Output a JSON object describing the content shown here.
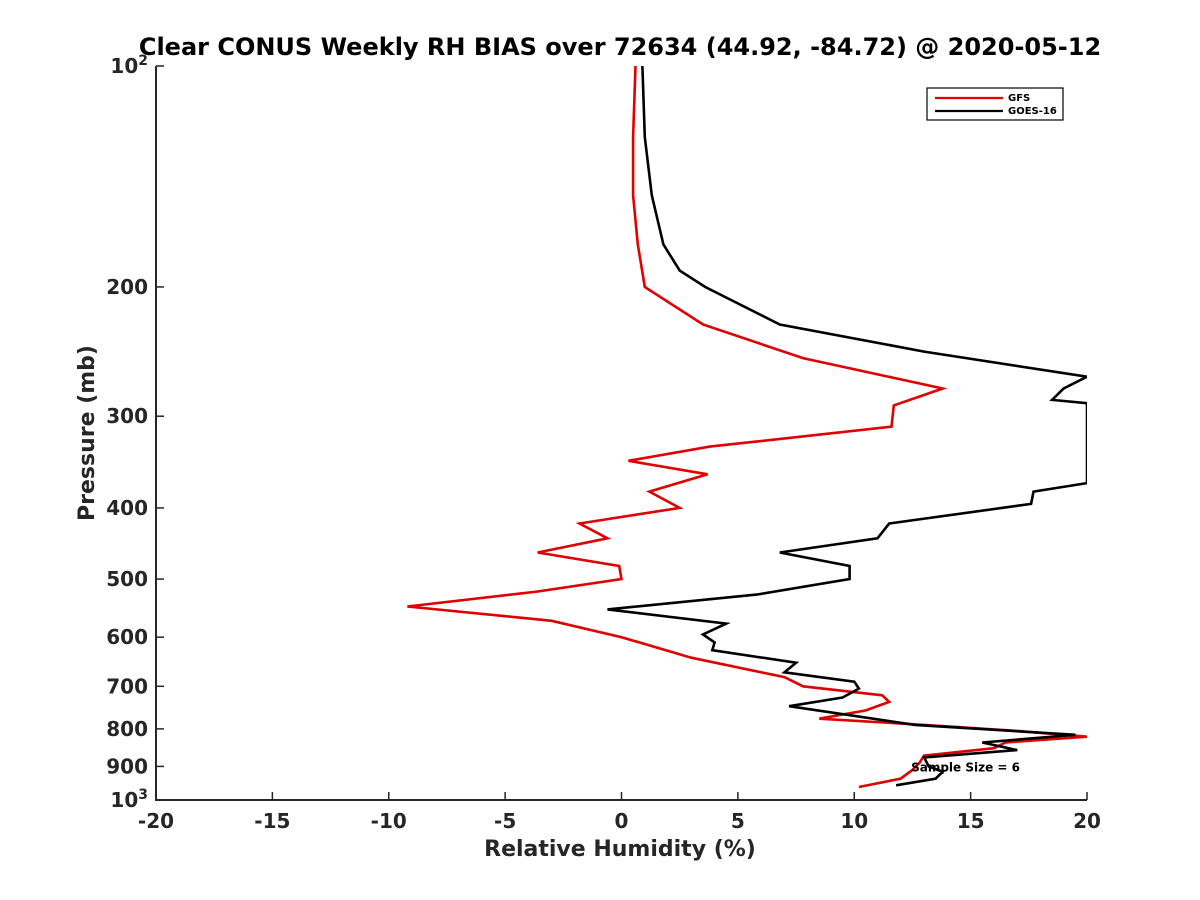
{
  "chart_data": {
    "type": "line",
    "title": "Clear CONUS Weekly RH BIAS over 72634 (44.92, -84.72) @ 2020-05-12",
    "xlabel": "Relative Humidity (%)",
    "ylabel": "Pressure (mb)",
    "xlim": [
      -20,
      20
    ],
    "ylim": [
      100,
      1000
    ],
    "yscale": "log",
    "y_reversed": true,
    "xticks": [
      -20,
      -15,
      -10,
      -5,
      0,
      5,
      10,
      15,
      20
    ],
    "xtick_labels": [
      "-20",
      "-15",
      "-10",
      "-5",
      "0",
      "5",
      "10",
      "15",
      "20"
    ],
    "yticks": [
      100,
      200,
      300,
      400,
      500,
      600,
      700,
      800,
      900,
      1000
    ],
    "ytick_labels": [
      {
        "value": 100,
        "base": "10",
        "exp": "2"
      },
      {
        "value": 200,
        "base": "200",
        "exp": ""
      },
      {
        "value": 300,
        "base": "300",
        "exp": ""
      },
      {
        "value": 400,
        "base": "400",
        "exp": ""
      },
      {
        "value": 500,
        "base": "500",
        "exp": ""
      },
      {
        "value": 600,
        "base": "600",
        "exp": ""
      },
      {
        "value": 700,
        "base": "700",
        "exp": ""
      },
      {
        "value": 800,
        "base": "800",
        "exp": ""
      },
      {
        "value": 900,
        "base": "900",
        "exp": ""
      },
      {
        "value": 1000,
        "base": "10",
        "exp": "3"
      }
    ],
    "legend_position": "top-right",
    "annotation": "Sample Size = 6",
    "annotation_at": {
      "x": 12.7,
      "y": 900
    },
    "series": [
      {
        "name": "GFS",
        "color": "#e00000",
        "points": [
          [
            0.6,
            100
          ],
          [
            0.5,
            125
          ],
          [
            0.5,
            150
          ],
          [
            0.7,
            175
          ],
          [
            1.0,
            200
          ],
          [
            3.5,
            225
          ],
          [
            7.8,
            250
          ],
          [
            13.8,
            275
          ],
          [
            11.7,
            290
          ],
          [
            11.6,
            310
          ],
          [
            3.8,
            330
          ],
          [
            0.3,
            345
          ],
          [
            3.7,
            360
          ],
          [
            1.2,
            380
          ],
          [
            2.5,
            400
          ],
          [
            -1.8,
            420
          ],
          [
            -0.6,
            440
          ],
          [
            -3.6,
            460
          ],
          [
            -0.1,
            480
          ],
          [
            0.0,
            500
          ],
          [
            -3.6,
            520
          ],
          [
            -9.2,
            545
          ],
          [
            -3.0,
            570
          ],
          [
            0.0,
            600
          ],
          [
            3.0,
            640
          ],
          [
            7.0,
            680
          ],
          [
            7.8,
            700
          ],
          [
            11.2,
            720
          ],
          [
            11.5,
            735
          ],
          [
            10.5,
            755
          ],
          [
            8.5,
            775
          ],
          [
            13.0,
            790
          ],
          [
            17.0,
            805
          ],
          [
            20.0,
            820
          ],
          [
            16.5,
            835
          ],
          [
            16.0,
            850
          ],
          [
            13.0,
            870
          ],
          [
            12.8,
            890
          ],
          [
            12.5,
            910
          ],
          [
            12.0,
            935
          ],
          [
            10.2,
            960
          ]
        ]
      },
      {
        "name": "GOES-16",
        "color": "#000000",
        "points": [
          [
            0.9,
            100
          ],
          [
            1.0,
            125
          ],
          [
            1.3,
            150
          ],
          [
            1.8,
            175
          ],
          [
            2.5,
            190
          ],
          [
            3.6,
            200
          ],
          [
            6.8,
            225
          ],
          [
            13.0,
            245
          ],
          [
            20.0,
            265
          ],
          [
            19.0,
            275
          ],
          [
            18.5,
            285
          ],
          [
            20.0,
            288
          ],
          [
            20.0,
            370
          ],
          [
            17.7,
            380
          ],
          [
            17.6,
            395
          ],
          [
            11.5,
            420
          ],
          [
            11.0,
            440
          ],
          [
            6.8,
            460
          ],
          [
            9.8,
            480
          ],
          [
            9.8,
            500
          ],
          [
            5.8,
            525
          ],
          [
            -0.6,
            550
          ],
          [
            4.5,
            575
          ],
          [
            3.5,
            595
          ],
          [
            4.0,
            610
          ],
          [
            3.9,
            625
          ],
          [
            7.5,
            650
          ],
          [
            7.0,
            670
          ],
          [
            10.0,
            690
          ],
          [
            10.2,
            705
          ],
          [
            9.5,
            725
          ],
          [
            7.2,
            745
          ],
          [
            12.6,
            790
          ],
          [
            19.5,
            815
          ],
          [
            15.5,
            835
          ],
          [
            17.0,
            855
          ],
          [
            13.0,
            875
          ],
          [
            13.2,
            900
          ],
          [
            13.8,
            915
          ],
          [
            13.5,
            935
          ],
          [
            11.8,
            955
          ]
        ]
      }
    ]
  }
}
